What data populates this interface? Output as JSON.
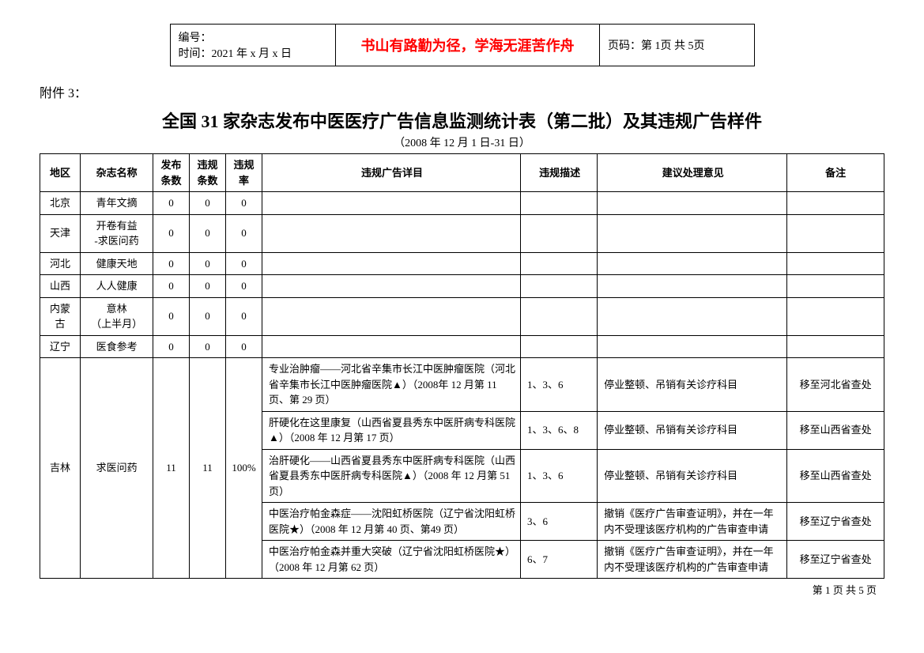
{
  "header": {
    "numbering_label": "编号：",
    "time_label": "时间：2021 年 x 月 x 日",
    "center_text": "书山有路勤为径，学海无涯苦作舟",
    "page_label": "页码：第 1页  共 5页"
  },
  "attachment_label": "附件 3：",
  "title": "全国 31 家杂志发布中医医疗广告信息监测统计表（第二批）及其违规广告样件",
  "subtitle": "（2008 年 12 月 1 日-31 日）",
  "columns": {
    "region": "地区",
    "magazine": "杂志名称",
    "publish_count": "发布\n条数",
    "violation_count": "违规\n条数",
    "violation_rate": "违规\n率",
    "detail": "违规广告详目",
    "description": "违规描述",
    "suggestion": "建议处理意见",
    "note": "备注"
  },
  "simple_rows": [
    {
      "region": "北京",
      "magazine": "青年文摘",
      "publish": "0",
      "viol": "0",
      "rate": "0"
    },
    {
      "region": "天津",
      "magazine": "开卷有益\n-求医问药",
      "publish": "0",
      "viol": "0",
      "rate": "0"
    },
    {
      "region": "河北",
      "magazine": "健康天地",
      "publish": "0",
      "viol": "0",
      "rate": "0"
    },
    {
      "region": "山西",
      "magazine": "人人健康",
      "publish": "0",
      "viol": "0",
      "rate": "0"
    },
    {
      "region": "内蒙古",
      "magazine": "意林\n（上半月）",
      "publish": "0",
      "viol": "0",
      "rate": "0"
    },
    {
      "region": "辽宁",
      "magazine": "医食参考",
      "publish": "0",
      "viol": "0",
      "rate": "0"
    }
  ],
  "jilin": {
    "region": "吉林",
    "magazine": "求医问药",
    "publish": "11",
    "viol": "11",
    "rate": "100%",
    "details": [
      {
        "detail": "专业治肿瘤——河北省辛集市长江中医肿瘤医院（河北省辛集市长江中医肿瘤医院▲）（2008年 12 月第 11 页、第 29 页）",
        "desc": "1、3、6",
        "suggest": "停业整顿、吊销有关诊疗科目",
        "note": "移至河北省查处"
      },
      {
        "detail": "肝硬化在这里康复（山西省夏县秀东中医肝病专科医院▲）（2008 年 12 月第 17 页）",
        "desc": "1、3、6、8",
        "suggest": "停业整顿、吊销有关诊疗科目",
        "note": "移至山西省查处"
      },
      {
        "detail": "治肝硬化——山西省夏县秀东中医肝病专科医院（山西省夏县秀东中医肝病专科医院▲）（2008 年 12 月第 51 页）",
        "desc": "1、3、6",
        "suggest": "停业整顿、吊销有关诊疗科目",
        "note": "移至山西省查处"
      },
      {
        "detail": "中医治疗帕金森症——沈阳虹桥医院（辽宁省沈阳虹桥医院★）（2008 年 12 月第 40 页、第49 页）",
        "desc": "3、6",
        "suggest": "撤销《医疗广告审查证明》，并在一年内不受理该医疗机构的广告审查申请",
        "note": "移至辽宁省查处"
      },
      {
        "detail": "中医治疗帕金森并重大突破（辽宁省沈阳虹桥医院★）（2008 年 12 月第 62 页）",
        "desc": "6、7",
        "suggest": "撤销《医疗广告审查证明》，并在一年内不受理该医疗机构的广告审查申请",
        "note": "移至辽宁省查处"
      }
    ]
  },
  "footer_page": "第 1 页 共 5 页"
}
